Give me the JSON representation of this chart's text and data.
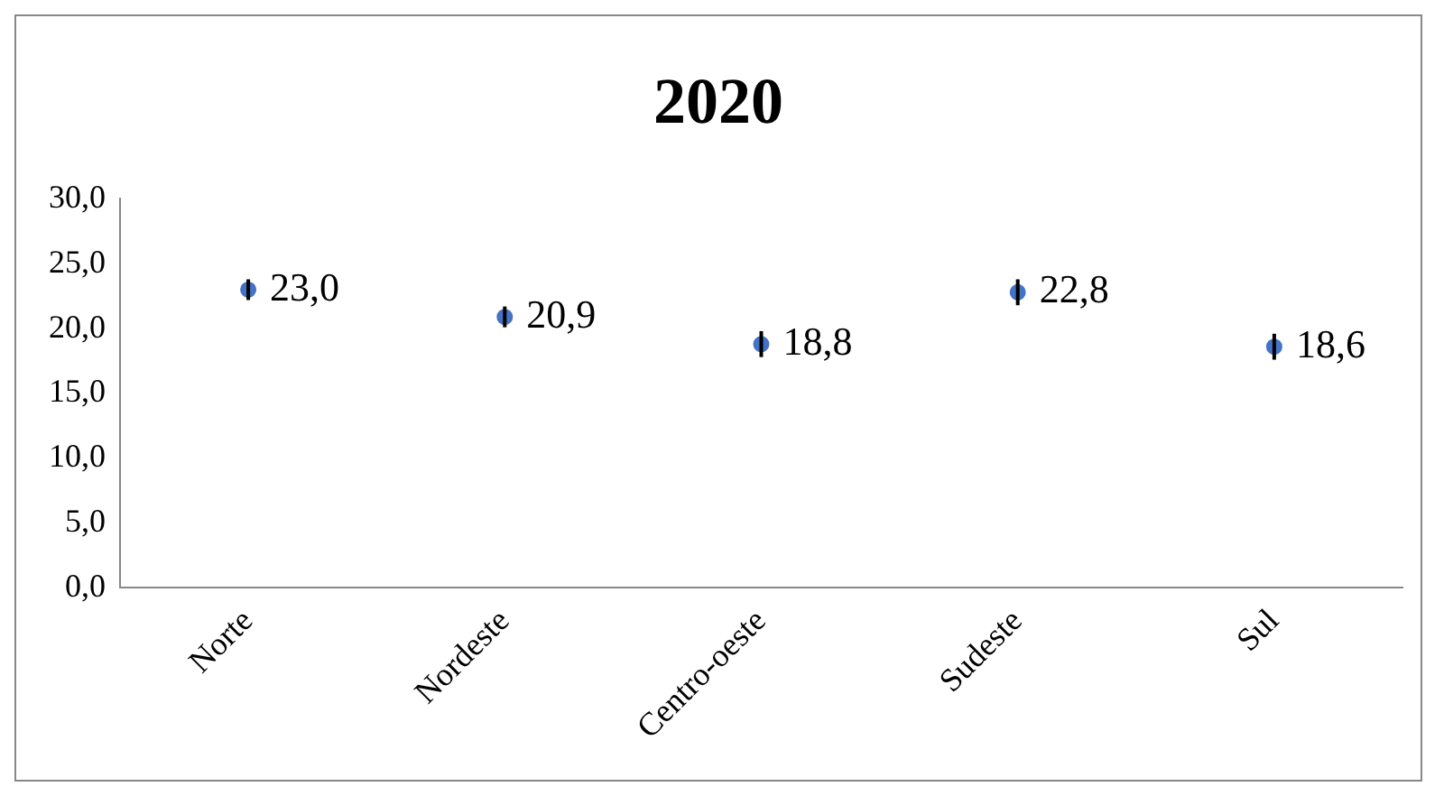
{
  "chart_data": {
    "type": "scatter",
    "title": "2020",
    "categories": [
      "Norte",
      "Nordeste",
      "Centro-oeste",
      "Sudeste",
      "Sul"
    ],
    "series": [
      {
        "color": "#4472c4",
        "values": [
          23.0,
          20.9,
          18.8,
          22.8,
          18.6
        ],
        "errors": [
          0.8,
          0.8,
          1.0,
          1.0,
          1.0
        ]
      }
    ],
    "ylim": [
      0,
      30
    ],
    "yticks": [
      {
        "value": 0,
        "label": "0,0"
      },
      {
        "value": 5,
        "label": "5,0"
      },
      {
        "value": 10,
        "label": "10,0"
      },
      {
        "value": 15,
        "label": "15,0"
      },
      {
        "value": 20,
        "label": "20,0"
      },
      {
        "value": 25,
        "label": "25,0"
      },
      {
        "value": 30,
        "label": "30,0"
      }
    ],
    "value_labels": [
      "23,0",
      "20,9",
      "18,8",
      "22,8",
      "18,6"
    ],
    "grid": false,
    "legend": false,
    "marker": "circle"
  }
}
